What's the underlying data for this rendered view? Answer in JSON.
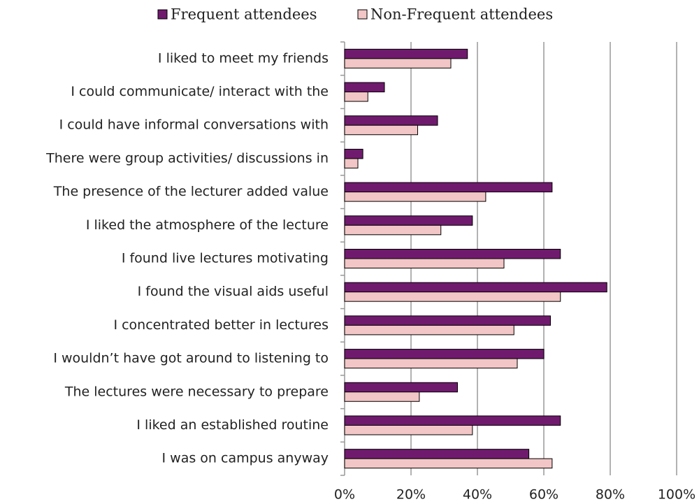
{
  "chart_data": {
    "type": "bar",
    "orientation": "horizontal",
    "categories": [
      "I liked to meet my friends",
      "I could communicate/ interact with the",
      "I could have informal conversations with",
      "There were group activities/ discussions in",
      "The presence of the lecturer added value",
      "I liked the atmosphere of the lecture",
      "I found live lectures motivating",
      "I found the visual aids useful",
      "I concentrated better in lectures",
      "I wouldn’t have got around to listening to",
      "The lectures were necessary to prepare",
      "I liked an established routine",
      "I was on campus anyway"
    ],
    "series": [
      {
        "name": "Frequent attendees",
        "color": "#701a6e",
        "values": [
          37,
          12,
          28,
          5.5,
          62.5,
          38.5,
          65,
          79,
          62,
          60,
          34,
          65,
          55.5
        ]
      },
      {
        "name": "Non-Frequent attendees",
        "color": "#f2c6c6",
        "values": [
          32,
          7,
          22,
          4,
          42.5,
          29,
          48,
          65,
          51,
          52,
          22.5,
          38.5,
          62.5
        ]
      }
    ],
    "xlim": [
      0,
      100
    ],
    "xticks": [
      {
        "value": 0,
        "label": "0%"
      },
      {
        "value": 20,
        "label": "20%"
      },
      {
        "value": 40,
        "label": "40%"
      },
      {
        "value": 60,
        "label": "60%"
      },
      {
        "value": 80,
        "label": "80%"
      },
      {
        "value": 100,
        "label": "100%"
      }
    ],
    "grid": true,
    "legend": "top"
  }
}
